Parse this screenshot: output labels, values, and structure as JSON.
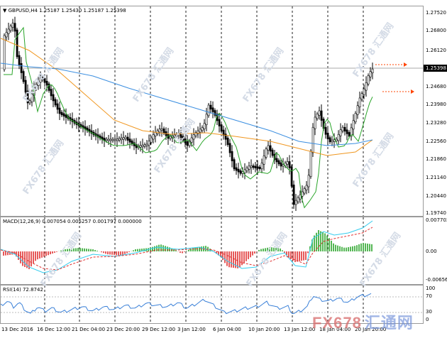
{
  "main": {
    "header": "GBPUSD,H4  1.25187 1.25430 1.25187 1.25398",
    "axis": {
      "labels": [
        "1.27520",
        "1.26800",
        "1.26120",
        "1.25398",
        "1.24680",
        "1.23980",
        "1.23280",
        "1.22560",
        "1.21860",
        "1.21140",
        "1.20440",
        "1.19740"
      ],
      "current_price": "1.25398"
    }
  },
  "macd": {
    "header": "MACD(12,26,9) 0.007054 0.005257 0.001797 0.000000",
    "axis": [
      "0.007702",
      "0.00",
      "-0.006562"
    ]
  },
  "rsi": {
    "header": "RSI(14) 72.8742",
    "axis": [
      "100",
      "70",
      "30",
      "0"
    ]
  },
  "time_axis": [
    "13 Dec 2016",
    "16 Dec 12:00",
    "21 Dec 04:00",
    "23 Dec 20:00",
    "29 Dec 12:00",
    "3 Jan 12:00",
    "6 Jan 04:00",
    "10 Jan 20:00",
    "13 Jan 12:00",
    "18 Jan 04:00",
    "20 Jan 20:00"
  ],
  "watermark": "FX678 汇通网",
  "brand": {
    "latin": "FX678",
    "cjk": "汇通网"
  },
  "colors": {
    "ma_fast": "#2aa52a",
    "ma_mid": "#f0961e",
    "ma_slow": "#3a8ee0",
    "macd_pos": "#2aa52a",
    "macd_neg": "#e03030",
    "macd_main": "#33ccee",
    "macd_signal": "#e03030",
    "rsi_line": "#3a80d8",
    "arrow": "#ff4400"
  }
}
